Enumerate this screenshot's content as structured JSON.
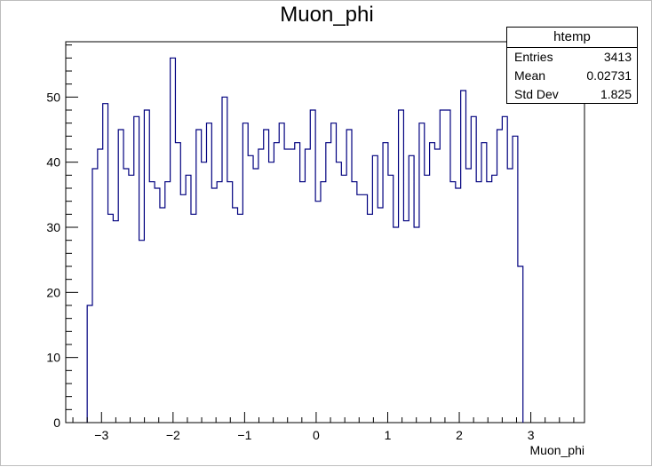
{
  "chart_data": {
    "type": "histogram",
    "title": "Muon_phi",
    "xlabel": "Muon_phi",
    "ylabel": "",
    "xlim": [
      -3.5,
      3.75
    ],
    "ylim": [
      0,
      58.5
    ],
    "x_ticks": [
      -3,
      -2,
      -1,
      0,
      1,
      2,
      3
    ],
    "x_tick_labels": [
      "−3",
      "−2",
      "−1",
      "0",
      "1",
      "2",
      "3"
    ],
    "y_ticks": [
      0,
      10,
      20,
      30,
      40,
      50
    ],
    "y_tick_labels": [
      "0",
      "10",
      "20",
      "30",
      "40",
      "50"
    ],
    "bin_start": -3.2,
    "bin_width": 0.0725,
    "values": [
      18,
      39,
      42,
      49,
      32,
      31,
      45,
      39,
      38,
      47,
      28,
      48,
      37,
      36,
      33,
      37,
      56,
      43,
      35,
      38,
      32,
      45,
      40,
      46,
      36,
      37,
      50,
      37,
      33,
      32,
      46,
      41,
      39,
      42,
      45,
      40,
      43,
      46,
      42,
      42,
      43,
      37,
      42,
      48,
      34,
      37,
      43,
      46,
      40,
      38,
      45,
      37,
      35,
      35,
      32,
      41,
      33,
      43,
      38,
      30,
      48,
      31,
      41,
      30,
      46,
      38,
      43,
      42,
      48,
      48,
      37,
      36,
      51,
      39,
      47,
      37,
      43,
      37,
      38,
      45,
      47,
      39,
      44,
      24
    ],
    "line_color": "#00007f",
    "grid": false
  },
  "stats": {
    "name": "htemp",
    "entries_label": "Entries",
    "entries_value": "3413",
    "mean_label": "Mean",
    "mean_value": "0.02731",
    "std_label": "Std Dev",
    "std_value": "1.825"
  }
}
